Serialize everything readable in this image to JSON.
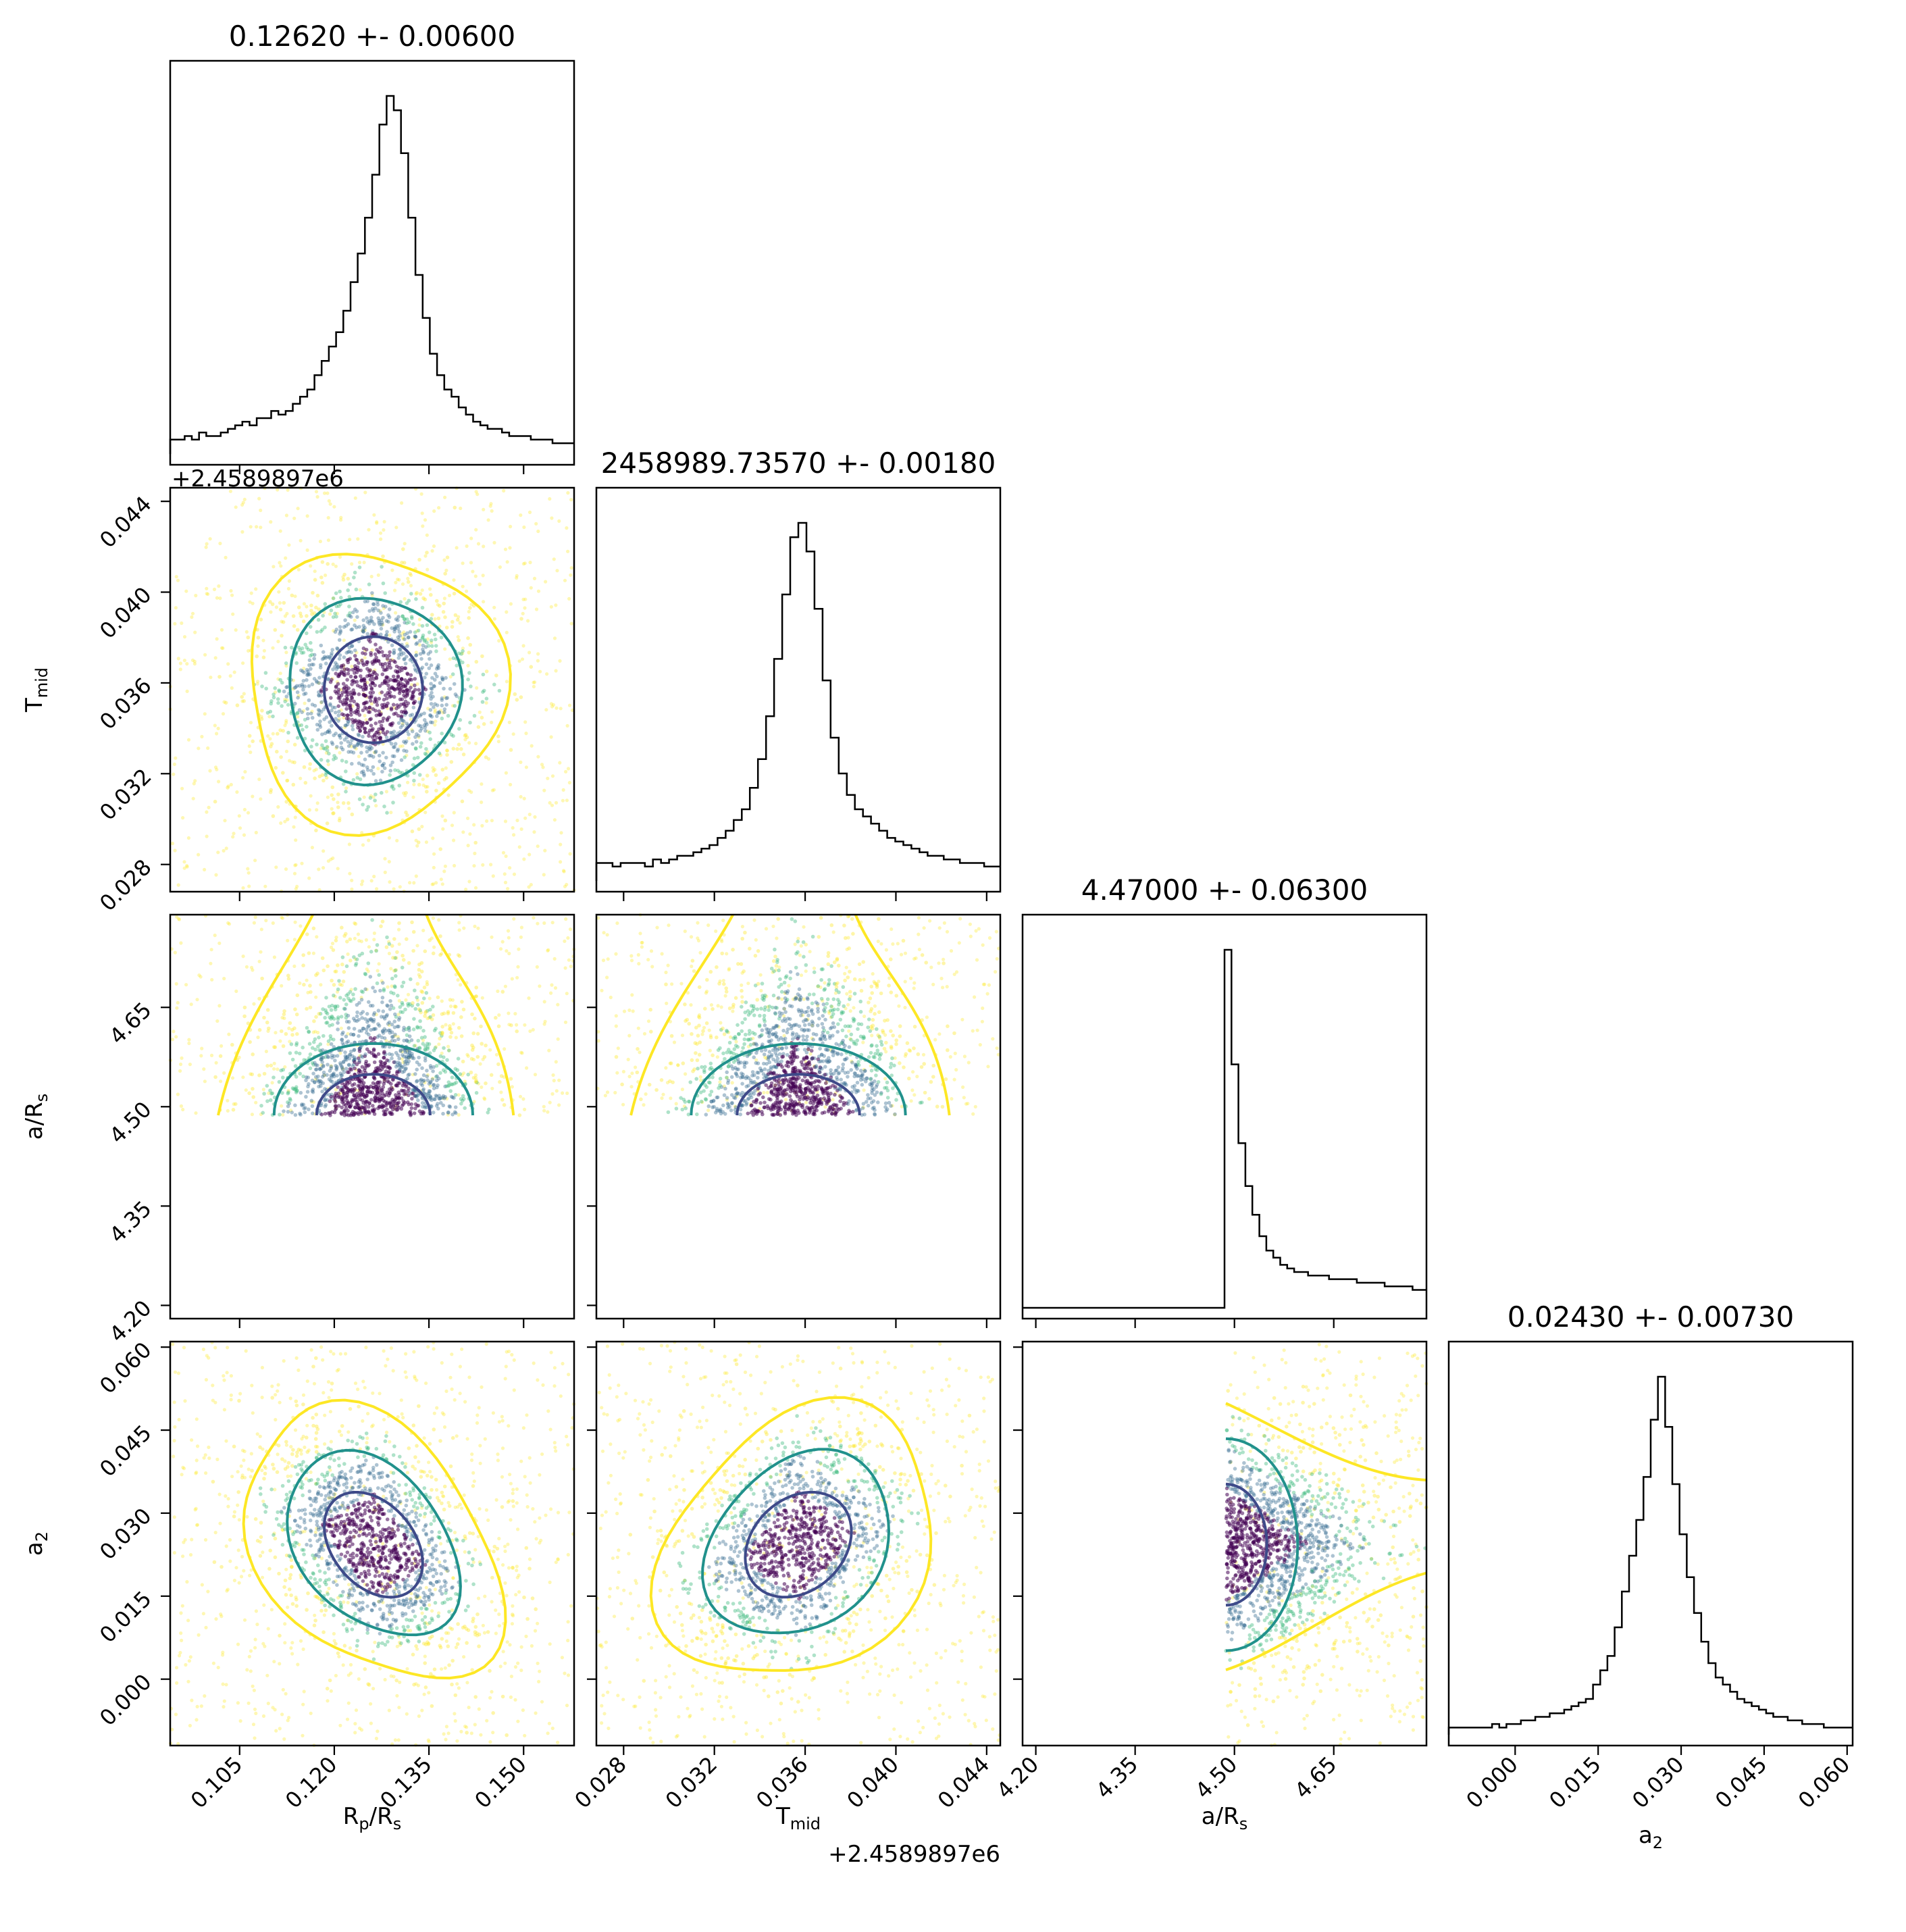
{
  "chart_data": {
    "type": "corner",
    "parameters": [
      {
        "label": "R",
        "sub": "p",
        "label2": "/R",
        "sub2": "s",
        "title": "0.12620 +- 0.00600",
        "range": [
          0.094,
          0.158
        ],
        "ticks": [
          0.105,
          0.12,
          0.135,
          0.15
        ],
        "tick_labels": [
          "0.105",
          "0.120",
          "0.135",
          "0.150"
        ],
        "mean": 0.1262,
        "sigma": 0.006
      },
      {
        "label": "T",
        "sub": "mid",
        "label2": "",
        "sub2": "",
        "title": "2458989.73570 +- 0.00180",
        "range": [
          0.0268,
          0.0446
        ],
        "ticks": [
          0.028,
          0.032,
          0.036,
          0.04,
          0.044
        ],
        "tick_labels": [
          "0.028",
          "0.032",
          "0.036",
          "0.040",
          "0.044"
        ],
        "offset": "+2.4589897e6",
        "mean": 0.0357,
        "sigma": 0.0018
      },
      {
        "label": "a/R",
        "sub": "s",
        "label2": "",
        "sub2": "",
        "title": "4.47000 +- 0.06300",
        "range": [
          4.18,
          4.79
        ],
        "ticks": [
          4.2,
          4.35,
          4.5,
          4.65
        ],
        "tick_labels": [
          "4.20",
          "4.35",
          "4.50",
          "4.65"
        ],
        "mean": 4.47,
        "sigma": 0.063,
        "lower_bound": 4.487
      },
      {
        "label": "a",
        "sub": "2",
        "label2": "",
        "sub2": "",
        "title": "0.02430 +- 0.00730",
        "range": [
          -0.012,
          0.061
        ],
        "ticks": [
          0.0,
          0.015,
          0.03,
          0.045,
          0.06
        ],
        "tick_labels": [
          "0.000",
          "0.015",
          "0.030",
          "0.045",
          "0.060"
        ],
        "mean": 0.0243,
        "sigma": 0.0073
      }
    ],
    "histograms": [
      {
        "param": 0,
        "bins": [
          0.094,
          0.158
        ],
        "counts": [
          4,
          4,
          5,
          4,
          6,
          5,
          5,
          6,
          7,
          8,
          9,
          8,
          10,
          10,
          12,
          11,
          12,
          14,
          16,
          18,
          22,
          26,
          30,
          34,
          40,
          48,
          56,
          66,
          78,
          92,
          100,
          96,
          84,
          66,
          50,
          38,
          28,
          22,
          18,
          16,
          13,
          11,
          9,
          8,
          7,
          7,
          6,
          5,
          5,
          5,
          4,
          4,
          4,
          3,
          3,
          3
        ]
      },
      {
        "param": 1,
        "bins": [
          0.0268,
          0.0446
        ],
        "counts": [
          5,
          5,
          4,
          5,
          5,
          5,
          4,
          6,
          5,
          6,
          7,
          7,
          8,
          9,
          10,
          12,
          14,
          17,
          20,
          26,
          34,
          46,
          62,
          80,
          96,
          100,
          92,
          76,
          56,
          40,
          30,
          24,
          20,
          18,
          16,
          14,
          12,
          11,
          10,
          9,
          8,
          7,
          7,
          6,
          6,
          5,
          5,
          5,
          4,
          4
        ]
      },
      {
        "param": 2,
        "bins": [
          4.18,
          4.79
        ],
        "counts": [
          0,
          0,
          0,
          0,
          0,
          0,
          0,
          0,
          0,
          0,
          0,
          0,
          0,
          0,
          0,
          0,
          0,
          0,
          0,
          0,
          0,
          0,
          0,
          0,
          0,
          0,
          0,
          0,
          0,
          100,
          68,
          46,
          34,
          26,
          20,
          16,
          14,
          12,
          11,
          10,
          10,
          9,
          9,
          9,
          8,
          8,
          8,
          8,
          7,
          7,
          7,
          7,
          6,
          6,
          6,
          6,
          5,
          5
        ]
      },
      {
        "param": 3,
        "bins": [
          -0.012,
          0.061
        ],
        "counts": [
          2,
          2,
          2,
          2,
          2,
          2,
          3,
          2,
          3,
          3,
          4,
          4,
          5,
          5,
          6,
          6,
          7,
          8,
          9,
          10,
          14,
          18,
          22,
          30,
          40,
          50,
          60,
          72,
          88,
          100,
          86,
          70,
          56,
          44,
          34,
          26,
          20,
          16,
          14,
          12,
          10,
          9,
          8,
          7,
          6,
          5,
          5,
          4,
          4,
          3,
          3,
          3,
          2,
          2,
          2,
          2
        ]
      }
    ],
    "contour_levels": [
      "inner",
      "middle",
      "outer"
    ],
    "contour_colors": [
      "#3e4a89",
      "#21918c",
      "#fde725"
    ],
    "point_colormap": [
      "#440154",
      "#31688e",
      "#35b779",
      "#fde725"
    ]
  },
  "colors": {
    "hist_line": "#000000",
    "frame": "#000000"
  }
}
